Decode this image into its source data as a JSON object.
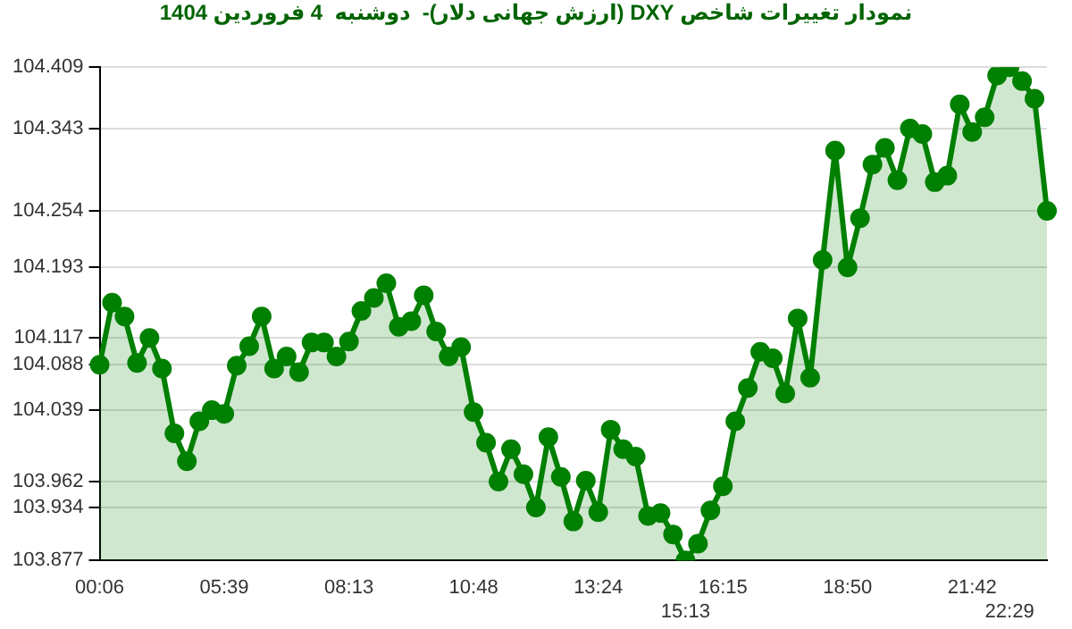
{
  "chart_data": {
    "type": "area",
    "title": "نمودار تغییرات شاخص DXY (ارزش جهانی دلار)-  دوشنبه  4 فروردین 1404",
    "categories": [
      "00:06",
      null,
      null,
      null,
      null,
      null,
      null,
      null,
      null,
      null,
      "05:39",
      null,
      null,
      null,
      null,
      null,
      null,
      null,
      null,
      null,
      "08:13",
      null,
      null,
      null,
      null,
      null,
      null,
      null,
      null,
      null,
      "10:48",
      null,
      null,
      null,
      null,
      null,
      null,
      null,
      null,
      null,
      "13:24",
      null,
      null,
      null,
      null,
      null,
      null,
      "15:13",
      null,
      null,
      "16:15",
      null,
      null,
      null,
      null,
      null,
      null,
      null,
      null,
      null,
      "18:50",
      null,
      null,
      null,
      null,
      null,
      null,
      null,
      null,
      null,
      "21:42",
      null,
      null,
      "22:29",
      null,
      null,
      null
    ],
    "series": [
      {
        "color": "#008000",
        "values": [
          104.088,
          104.155,
          104.14,
          104.09,
          104.117,
          104.084,
          104.014,
          103.984,
          104.027,
          104.039,
          104.035,
          104.087,
          104.108,
          104.14,
          104.084,
          104.097,
          104.08,
          104.112,
          104.112,
          104.097,
          104.113,
          104.146,
          104.16,
          104.176,
          104.129,
          104.135,
          104.163,
          104.124,
          104.097,
          104.107,
          104.037,
          104.004,
          103.962,
          103.997,
          103.97,
          103.934,
          104.01,
          103.967,
          103.919,
          103.963,
          103.929,
          104.018,
          103.997,
          103.989,
          103.925,
          103.928,
          103.905,
          103.877,
          103.895,
          103.931,
          103.957,
          104.027,
          104.063,
          104.102,
          104.095,
          104.057,
          104.138,
          104.074,
          104.201,
          104.319,
          104.193,
          104.246,
          104.304,
          104.322,
          104.287,
          104.343,
          104.337,
          104.285,
          104.292,
          104.369,
          104.339,
          104.355,
          104.4,
          104.409,
          104.394,
          104.375,
          104.254
        ]
      }
    ],
    "ylim": [
      103.877,
      104.409
    ],
    "yticks": [
      103.877,
      103.934,
      103.962,
      104.039,
      104.088,
      104.117,
      104.193,
      104.254,
      104.343,
      104.409
    ],
    "grid": "y",
    "marker": "circle",
    "line_style": "solid",
    "legend": false
  }
}
